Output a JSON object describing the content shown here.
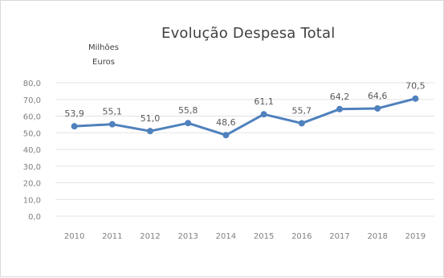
{
  "chart_data": {
    "type": "line",
    "title": "Evolução Despesa Total",
    "unit_label_line1": "Milhões",
    "unit_label_line2": "Euros",
    "categories": [
      "2010",
      "2011",
      "2012",
      "2013",
      "2014",
      "2015",
      "2016",
      "2017",
      "2018",
      "2019"
    ],
    "series": [
      {
        "values": [
          53.9,
          55.1,
          51.0,
          55.8,
          48.6,
          61.1,
          55.7,
          64.2,
          64.6,
          70.5
        ],
        "labels": [
          "53,9",
          "55,1",
          "51,0",
          "55,8",
          "48,6",
          "61,1",
          "55,7",
          "64,2",
          "64,6",
          "70,5"
        ],
        "color": "#4f81bd"
      }
    ],
    "ylim": [
      0,
      80
    ],
    "y_ticks": [
      0,
      10,
      20,
      30,
      40,
      50,
      60,
      70,
      80
    ],
    "y_tick_labels": [
      "0,0",
      "10,0",
      "20,0",
      "30,0",
      "40,0",
      "50,0",
      "60,0",
      "70,0",
      "80,0"
    ],
    "grid": true,
    "legend": "none"
  }
}
